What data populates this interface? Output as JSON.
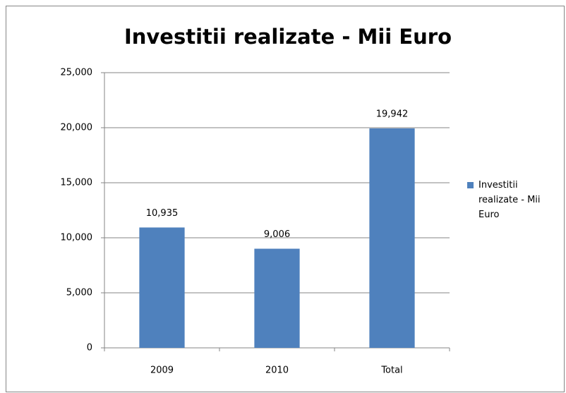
{
  "chart_data": {
    "type": "bar",
    "title": "Investitii realizate - Mii Euro",
    "categories": [
      "2009",
      "2010",
      "Total"
    ],
    "series": [
      {
        "name": "Investitii realizate - Mii Euro",
        "color": "#4f81bd",
        "values": [
          10935,
          9006,
          19942
        ],
        "value_labels": [
          "10,935",
          "9,006",
          "19,942"
        ]
      }
    ],
    "ylim": [
      0,
      25000
    ],
    "yticks": [
      0,
      {
        "value": 5000,
        "label": "5,000"
      },
      {
        "value": 10000,
        "label": "10,000"
      },
      {
        "value": 15000,
        "label": "15,000"
      },
      {
        "value": 20000,
        "label": "20,000"
      },
      {
        "value": 25000,
        "label": "25,000"
      }
    ],
    "grid": true,
    "legend": "right"
  }
}
